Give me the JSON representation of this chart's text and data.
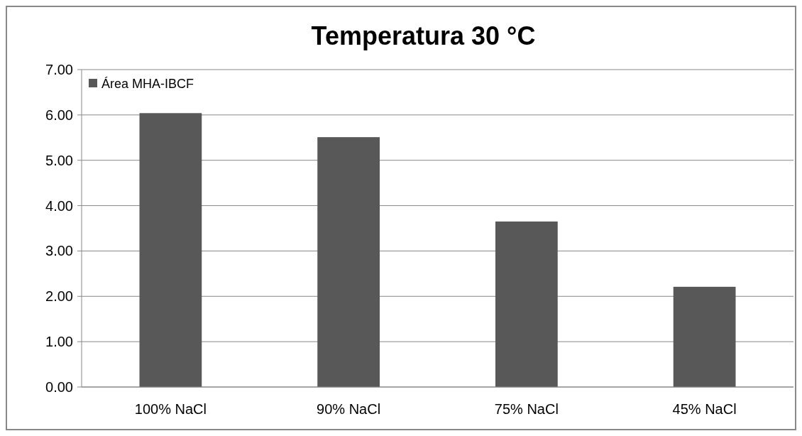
{
  "chart_data": {
    "type": "bar",
    "title": "Temperatura 30 °C",
    "categories": [
      "100% NaCl",
      "90% NaCl",
      "75% NaCl",
      "45% NaCl"
    ],
    "series": [
      {
        "name": "Área MHA-IBCF",
        "color": "#585858",
        "values": [
          6.04,
          5.51,
          3.65,
          2.21
        ]
      }
    ],
    "ylim": [
      0,
      7
    ],
    "yticks": [
      {
        "value": 0,
        "label": "0.00"
      },
      {
        "value": 1,
        "label": "1.00"
      },
      {
        "value": 2,
        "label": "2.00"
      },
      {
        "value": 3,
        "label": "3.00"
      },
      {
        "value": 4,
        "label": "4.00"
      },
      {
        "value": 5,
        "label": "5.00"
      },
      {
        "value": 6,
        "label": "6.00"
      },
      {
        "value": 7,
        "label": "7.00"
      }
    ],
    "grid": "y",
    "legend": "top left"
  }
}
